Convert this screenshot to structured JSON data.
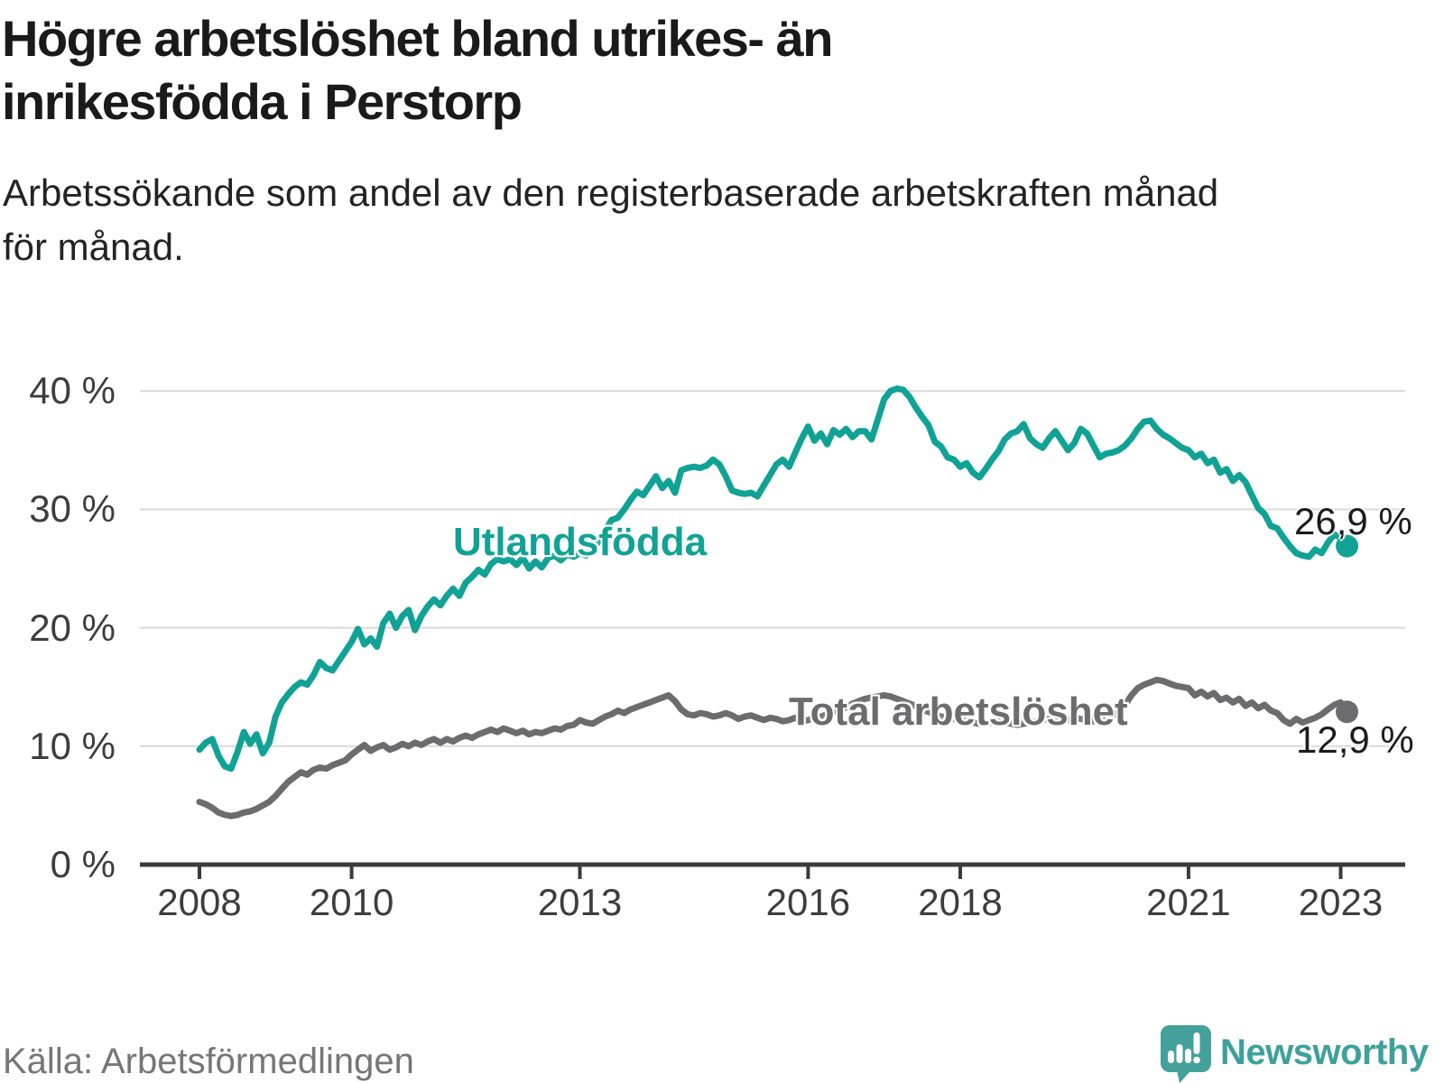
{
  "header": {
    "title_lines": [
      "Högre arbetslöshet bland utrikes- än",
      "inrikesfödda i Perstorp"
    ],
    "subtitle_lines": [
      "Arbetssökande som andel av den registerbaserade arbetskraften månad",
      "för månad."
    ]
  },
  "footer": {
    "source": "Källa: Arbetsförmedlingen",
    "logo_text": "Newsworthy",
    "logo_icon": "speech-bubble-bar-chart-exclamation"
  },
  "colors": {
    "accent_teal": "#10a295",
    "line_gray": "#6c6c6e",
    "grid": "#d9d9d9",
    "axis": "#3b3b3b",
    "text_dark": "#1a1a1a",
    "tick_text": "#3d3d3d",
    "source_text": "#767676",
    "logo_teal": "#43a09a"
  },
  "chart_data": {
    "type": "line",
    "title": "Högre arbetslöshet bland utrikes- än inrikesfödda i Perstorp",
    "subtitle": "Arbetssökande som andel av den registerbaserade arbetskraften månad för månad.",
    "xlabel": "",
    "ylabel": "",
    "x_start_year": 2008,
    "x_step_months": 1,
    "x_end": "2023-02",
    "ylim": [
      0,
      40
    ],
    "grid": "horizontal",
    "legend_position": "inline-labels",
    "yticks": [
      {
        "value": 0,
        "label": "0 %"
      },
      {
        "value": 10,
        "label": "10 %"
      },
      {
        "value": 20,
        "label": "20 %"
      },
      {
        "value": 30,
        "label": "30 %"
      },
      {
        "value": 40,
        "label": "40 %"
      }
    ],
    "xticks": [
      {
        "year": 2008,
        "label": "2008"
      },
      {
        "year": 2010,
        "label": "2010"
      },
      {
        "year": 2013,
        "label": "2013"
      },
      {
        "year": 2016,
        "label": "2016"
      },
      {
        "year": 2018,
        "label": "2018"
      },
      {
        "year": 2021,
        "label": "2021"
      },
      {
        "year": 2023,
        "label": "2023"
      }
    ],
    "series": [
      {
        "name": "Utlandsfödda",
        "color": "#10a295",
        "end_label": "26,9 %",
        "end_value": 26.9,
        "values": [
          9.7,
          10.3,
          10.6,
          9.2,
          8.3,
          8.1,
          9.5,
          11.2,
          10.2,
          11.0,
          9.4,
          10.3,
          12.5,
          13.7,
          14.4,
          15.0,
          15.4,
          15.2,
          16.0,
          17.1,
          16.6,
          16.4,
          17.2,
          18.0,
          18.8,
          19.9,
          18.6,
          19.1,
          18.4,
          20.4,
          21.2,
          20.0,
          21.0,
          21.5,
          19.8,
          21.0,
          21.8,
          22.4,
          21.9,
          22.7,
          23.3,
          22.7,
          23.8,
          24.3,
          24.9,
          24.5,
          25.4,
          25.8,
          25.6,
          25.8,
          25.3,
          25.9,
          25.0,
          25.6,
          25.1,
          25.9,
          26.1,
          25.7,
          26.2,
          26.0,
          26.3,
          26.1,
          26.7,
          27.3,
          28.2,
          29.1,
          29.3,
          30.0,
          30.8,
          31.5,
          31.2,
          32.0,
          32.8,
          31.8,
          32.4,
          31.4,
          33.3,
          33.5,
          33.6,
          33.5,
          33.7,
          34.2,
          33.8,
          32.8,
          31.6,
          31.4,
          31.3,
          31.4,
          31.1,
          32.0,
          32.9,
          33.8,
          34.2,
          33.6,
          34.8,
          36.0,
          37.0,
          35.8,
          36.4,
          35.5,
          36.7,
          36.3,
          36.8,
          36.1,
          36.6,
          36.6,
          35.9,
          37.6,
          39.3,
          40.0,
          40.2,
          40.1,
          39.5,
          38.6,
          37.8,
          37.1,
          35.7,
          35.3,
          34.4,
          34.2,
          33.6,
          33.9,
          33.1,
          32.7,
          33.4,
          34.2,
          34.9,
          35.9,
          36.4,
          36.6,
          37.2,
          36.0,
          35.5,
          35.2,
          36.0,
          36.6,
          35.8,
          35.0,
          35.6,
          36.8,
          36.4,
          35.4,
          34.4,
          34.7,
          34.8,
          35.0,
          35.4,
          36.0,
          36.8,
          37.4,
          37.5,
          36.8,
          36.3,
          36.0,
          35.6,
          35.2,
          35.0,
          34.4,
          34.7,
          33.9,
          34.2,
          33.1,
          33.4,
          32.4,
          32.9,
          32.3,
          31.2,
          30.1,
          29.6,
          28.6,
          28.4,
          27.6,
          26.9,
          26.3,
          26.1,
          26.0,
          26.6,
          26.3,
          27.2,
          27.9,
          27.6,
          26.9
        ]
      },
      {
        "name": "Total arbetslöshet",
        "color": "#6c6c6e",
        "end_label": "12,9 %",
        "end_value": 12.9,
        "values": [
          5.3,
          5.1,
          4.8,
          4.4,
          4.2,
          4.1,
          4.2,
          4.4,
          4.5,
          4.7,
          5.0,
          5.3,
          5.8,
          6.4,
          7.0,
          7.4,
          7.8,
          7.6,
          8.0,
          8.2,
          8.1,
          8.4,
          8.6,
          8.8,
          9.3,
          9.7,
          10.1,
          9.6,
          9.9,
          10.1,
          9.7,
          9.9,
          10.2,
          10.0,
          10.3,
          10.1,
          10.4,
          10.6,
          10.3,
          10.6,
          10.4,
          10.7,
          10.9,
          10.7,
          11.0,
          11.2,
          11.4,
          11.2,
          11.5,
          11.3,
          11.1,
          11.3,
          11.0,
          11.2,
          11.1,
          11.3,
          11.5,
          11.4,
          11.7,
          11.8,
          12.2,
          12.0,
          11.9,
          12.2,
          12.5,
          12.7,
          13.0,
          12.8,
          13.1,
          13.3,
          13.5,
          13.7,
          13.9,
          14.1,
          14.3,
          13.8,
          13.1,
          12.7,
          12.6,
          12.8,
          12.7,
          12.5,
          12.6,
          12.8,
          12.6,
          12.3,
          12.5,
          12.6,
          12.4,
          12.2,
          12.4,
          12.3,
          12.1,
          12.2,
          12.4,
          12.1,
          12.2,
          12.4,
          12.5,
          12.7,
          12.9,
          13.1,
          13.3,
          13.6,
          13.8,
          14.0,
          14.1,
          14.2,
          14.3,
          14.2,
          14.0,
          13.8,
          13.6,
          13.4,
          13.1,
          12.9,
          12.7,
          12.5,
          12.4,
          12.3,
          12.2,
          12.1,
          12.0,
          11.9,
          11.9,
          12.0,
          12.1,
          12.0,
          11.9,
          11.8,
          11.9,
          12.0,
          12.1,
          12.2,
          12.3,
          12.2,
          12.1,
          12.2,
          12.4,
          12.3,
          12.2,
          12.1,
          12.2,
          12.4,
          12.6,
          12.9,
          13.5,
          14.3,
          14.9,
          15.2,
          15.4,
          15.6,
          15.5,
          15.3,
          15.1,
          15.0,
          14.9,
          14.3,
          14.6,
          14.2,
          14.5,
          13.9,
          14.1,
          13.7,
          14.0,
          13.4,
          13.7,
          13.2,
          13.5,
          13.0,
          12.8,
          12.2,
          11.9,
          12.3,
          12.0,
          12.2,
          12.4,
          12.7,
          13.1,
          13.5,
          13.7,
          12.9
        ]
      }
    ]
  }
}
